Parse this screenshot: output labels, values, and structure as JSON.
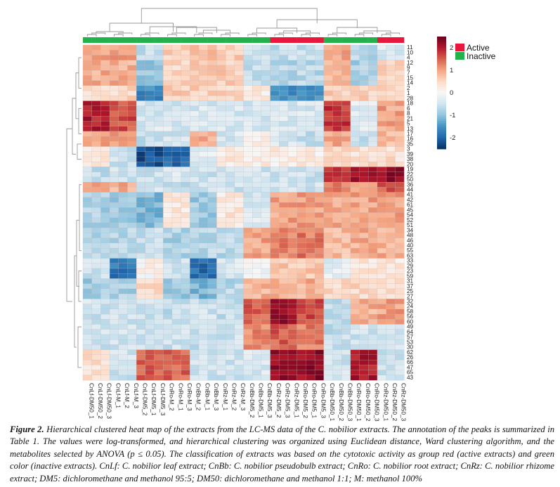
{
  "chart_data": {
    "type": "heatmap",
    "title": "",
    "columns": [
      "CnLf-DM50_1",
      "CnLf-DM50_2",
      "CnLf-DM50_3",
      "CnLf-M_1",
      "CnLf-M_2",
      "CnLf-M_3",
      "CnLf-DM5_2",
      "CnLf-DM5_1",
      "CnLf-DM5_3",
      "CnRo-M_2",
      "CnRo-M_1",
      "CnRo-M_3",
      "CnBb-M_2",
      "CnBb-M_1",
      "CnBb-M_3",
      "CnRz-M_1",
      "CnRz-M_2",
      "CnRz-M_3",
      "CnBb-DM5_2",
      "CnBb-DM5_1",
      "CnBb-DM5_3",
      "CnRz-DM5_2",
      "CnRz-DM5_3",
      "CnRz-DM5_1",
      "CnRo-DM5_2",
      "CnRo-DM5_1",
      "CnRo-DM5_3",
      "CnBb-DM50_1",
      "CnBb-DM50_2",
      "CnBb-DM50_3",
      "CnRo-DM50_1",
      "CnRo-DM50_2",
      "CnRo-DM50_3",
      "CnRz-DM50_1",
      "CnRz-DM50_2",
      "CnRz-DM50_3"
    ],
    "column_groups": [
      "Inactive",
      "Inactive",
      "Inactive",
      "Inactive",
      "Inactive",
      "Inactive",
      "Inactive",
      "Inactive",
      "Inactive",
      "Inactive",
      "Inactive",
      "Inactive",
      "Inactive",
      "Inactive",
      "Inactive",
      "Inactive",
      "Inactive",
      "Inactive",
      "Inactive",
      "Inactive",
      "Inactive",
      "Active",
      "Active",
      "Active",
      "Active",
      "Active",
      "Active",
      "Inactive",
      "Inactive",
      "Inactive",
      "Inactive",
      "Inactive",
      "Inactive",
      "Active",
      "Active",
      "Active"
    ],
    "rows": [
      "11",
      "10",
      "4",
      "12",
      "9",
      "7",
      "15",
      "14",
      "2",
      "1",
      "28",
      "18",
      "6",
      "8",
      "21",
      "5",
      "13",
      "17",
      "16",
      "35",
      "3",
      "39",
      "38",
      "20",
      "19",
      "22",
      "50",
      "36",
      "44",
      "41",
      "42",
      "61",
      "45",
      "54",
      "52",
      "51",
      "34",
      "48",
      "46",
      "40",
      "55",
      "63",
      "33",
      "29",
      "23",
      "59",
      "31",
      "37",
      "25",
      "27",
      "32",
      "24",
      "58",
      "56",
      "60",
      "49",
      "64",
      "57",
      "53",
      "30",
      "62",
      "26",
      "66",
      "47",
      "65",
      "43"
    ],
    "block_values": {
      "description": "Approximate z-scores per row cluster (rows) x column group (cols: CnLf-DM50, CnLf-M, CnLf-DM5, CnRo-M, CnBb-M, CnRz-M, CnBb-DM5, CnRz-DM5, CnRo-DM5, CnBb-DM50, CnRo-DM50, CnRz-DM50)",
      "matrix": [
        [
          1.0,
          1.0,
          -0.6,
          0.6,
          0.8,
          0.6,
          -0.4,
          -0.6,
          -0.6,
          1.0,
          -0.7,
          -0.4
        ],
        [
          0.9,
          0.9,
          -0.9,
          0.5,
          0.8,
          0.6,
          -0.6,
          -0.7,
          -0.7,
          0.9,
          -0.8,
          0.5
        ],
        [
          0.5,
          0.5,
          -1.6,
          0.6,
          0.6,
          0.5,
          0.2,
          -1.5,
          -1.5,
          0.6,
          0.6,
          0.6
        ],
        [
          2.0,
          1.6,
          -0.4,
          -0.4,
          -0.4,
          -0.4,
          -0.4,
          -0.4,
          -0.4,
          1.8,
          -0.3,
          1.0
        ],
        [
          1.0,
          1.0,
          -0.6,
          -0.5,
          0.9,
          -0.4,
          0.1,
          -0.4,
          -0.6,
          1.0,
          -0.6,
          0.8
        ],
        [
          0.2,
          -0.5,
          -2.2,
          -2.0,
          -0.3,
          0.3,
          0.2,
          0.2,
          0.2,
          0.4,
          0.4,
          0.4
        ],
        [
          -0.6,
          -0.5,
          -0.5,
          -0.4,
          -0.5,
          -0.5,
          -0.5,
          -0.5,
          -0.5,
          1.7,
          2.2,
          2.2
        ],
        [
          1.2,
          0.9,
          -0.4,
          -0.6,
          -0.5,
          -0.5,
          -0.5,
          -0.5,
          -0.5,
          1.2,
          0.9,
          1.6
        ],
        [
          -0.8,
          -0.9,
          -1.1,
          0.3,
          -0.9,
          0.3,
          -0.4,
          1.0,
          1.0,
          1.0,
          1.0,
          1.0
        ],
        [
          -0.7,
          -0.7,
          -0.6,
          -0.8,
          -0.7,
          -0.7,
          1.0,
          1.3,
          1.3,
          0.8,
          0.9,
          0.9
        ],
        [
          -0.5,
          -1.8,
          0.1,
          -0.5,
          -1.9,
          -0.4,
          -0.1,
          0.7,
          0.7,
          -0.3,
          0.3,
          0.3
        ],
        [
          -0.9,
          -0.8,
          0.5,
          -0.9,
          -1.1,
          -0.7,
          0.9,
          0.9,
          0.9,
          0.5,
          0.5,
          0.5
        ],
        [
          -0.5,
          -0.5,
          -0.5,
          -0.6,
          -0.5,
          -0.6,
          1.5,
          2.1,
          1.7,
          -0.6,
          0.9,
          1.0
        ],
        [
          -0.5,
          -0.5,
          -0.5,
          -0.5,
          -0.6,
          -0.5,
          1.2,
          1.5,
          1.3,
          -0.6,
          -0.5,
          -0.5
        ],
        [
          0.4,
          -0.5,
          1.5,
          1.5,
          -0.5,
          -0.5,
          -0.4,
          2.2,
          2.2,
          -0.5,
          2.0,
          -0.5
        ]
      ]
    },
    "row_block_sizes": [
      3,
      5,
      3,
      6,
      3,
      4,
      3,
      2,
      7,
      6,
      4,
      4,
      5,
      5,
      6
    ],
    "colorbar": {
      "ticks": [
        2,
        1,
        0,
        -1,
        -2
      ],
      "range": [
        -2.5,
        2.5
      ],
      "colors": [
        "#053061",
        "#2166ac",
        "#4393c3",
        "#92c5de",
        "#d1e5f0",
        "#f7f7f7",
        "#fddbc7",
        "#f4a582",
        "#d6604d",
        "#b2182b",
        "#67001f"
      ]
    },
    "legend": [
      {
        "label": "Active",
        "color": "#e8173c"
      },
      {
        "label": "Inactive",
        "color": "#22b14c"
      }
    ],
    "xlabel": "",
    "ylabel": "",
    "grid": false,
    "legend_position": "top-right"
  },
  "caption": {
    "label": "Figure 2.",
    "text": " Hierarchical clustered heat map of the extracts from the LC-MS data of the C. nobilior extracts. The annotation of the peaks is summarized in Table 1. The values were log-transformed, and hierarchical clustering was organized using Euclidean distance, Ward clustering algorithm, and the metabolites selected by ANOVA (p ≤ 0.05). The classification of extracts was based on the cytotoxic activity as group red (active extracts) and green color (inactive extracts). CnLf: C. nobilior leaf extract; CnBb: C. nobilior pseudobulb extract; CnRo: C. nobilior root extract; CnRz: C. nobilior rhizome extract; DM5: dichloromethane and methanol 95:5; DM50: dichloromethane and methanol 1:1; M: methanol 100%"
  }
}
